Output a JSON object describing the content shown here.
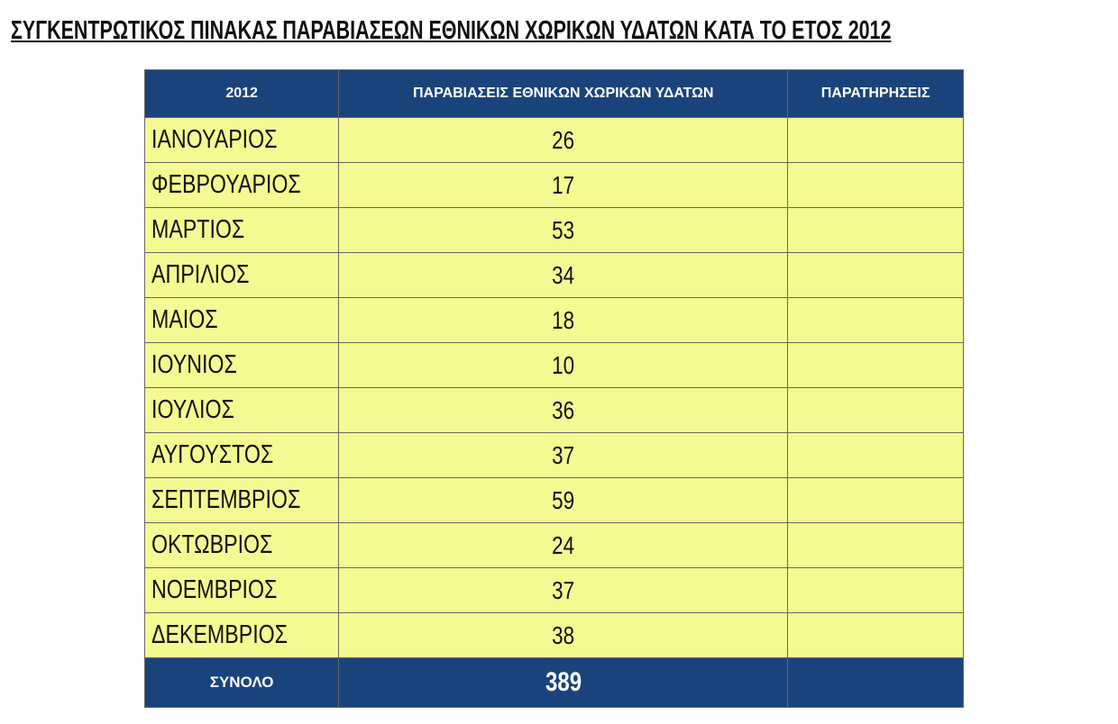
{
  "title": "ΣΥΓΚΕΝΤΡΩΤΙΚΟΣ ΠΙΝΑΚΑΣ ΠΑΡΑΒΙΑΣΕΩΝ ΕΘΝΙΚΩΝ ΧΩΡΙΚΩΝ ΥΔΑΤΩΝ ΚΑΤΑ ΤΟ ΕΤΟΣ 2012",
  "headers": [
    "2012",
    "ΠΑΡΑΒΙΑΣΕΙΣ ΕΘΝΙΚΩΝ ΧΩΡΙΚΩΝ ΥΔΑΤΩΝ",
    "ΠΑΡΑΤΗΡΗΣΕΙΣ"
  ],
  "rows": [
    {
      "month": "ΙΑΝΟΥΑΡΙΟΣ",
      "value": "26",
      "note": ""
    },
    {
      "month": "ΦΕΒΡΟΥΑΡΙΟΣ",
      "value": "17",
      "note": ""
    },
    {
      "month": "ΜΑΡΤΙΟΣ",
      "value": "53",
      "note": ""
    },
    {
      "month": "ΑΠΡΙΛΙΟΣ",
      "value": "34",
      "note": ""
    },
    {
      "month": "ΜΑΙΟΣ",
      "value": "18",
      "note": ""
    },
    {
      "month": "ΙΟΥΝΙΟΣ",
      "value": "10",
      "note": ""
    },
    {
      "month": "ΙΟΥΛΙΟΣ",
      "value": "36",
      "note": ""
    },
    {
      "month": "ΑΥΓΟΥΣΤΟΣ",
      "value": "37",
      "note": ""
    },
    {
      "month": "ΣΕΠΤΕΜΒΡΙΟΣ",
      "value": "59",
      "note": ""
    },
    {
      "month": "ΟΚΤΩΒΡΙΟΣ",
      "value": "24",
      "note": ""
    },
    {
      "month": "ΝΟΕΜΒΡΙΟΣ",
      "value": "37",
      "note": ""
    },
    {
      "month": "ΔΕΚΕΜΒΡΙΟΣ",
      "value": "38",
      "note": ""
    }
  ],
  "total": {
    "label": "ΣΥΝΟΛΟ",
    "value": "389",
    "note": ""
  },
  "colors": {
    "header": "#1b437b",
    "cell": "#f5f991"
  }
}
